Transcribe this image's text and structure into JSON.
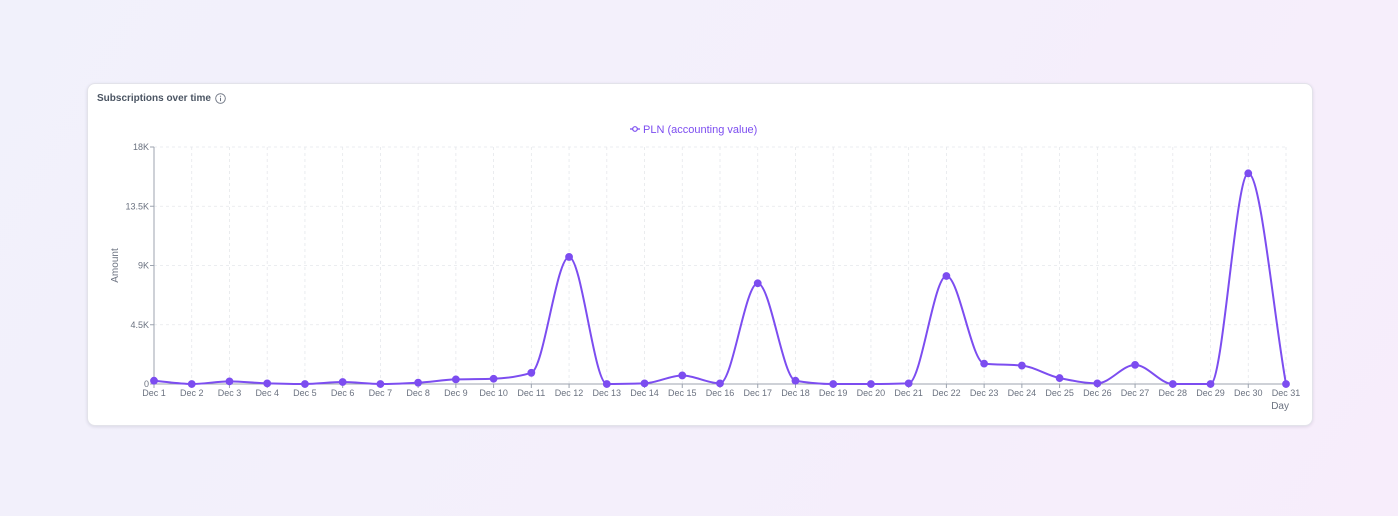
{
  "card": {
    "title": "Subscriptions over time",
    "info_icon": "info-circle-icon"
  },
  "colors": {
    "series": "#7c4df0",
    "grid": "#e5e7eb",
    "axis": "#9ca3af",
    "text": "#6b7280"
  },
  "chart_data": {
    "type": "line",
    "title": "Subscriptions over time",
    "xlabel": "Day",
    "ylabel": "Amount",
    "ylim": [
      0,
      18000
    ],
    "yticks": [
      0,
      4500,
      9000,
      13500,
      18000
    ],
    "ytick_labels": [
      "0",
      "4.5K",
      "9K",
      "13.5K",
      "18K"
    ],
    "categories": [
      "Dec 1",
      "Dec 2",
      "Dec 3",
      "Dec 4",
      "Dec 5",
      "Dec 6",
      "Dec 7",
      "Dec 8",
      "Dec 9",
      "Dec 10",
      "Dec 11",
      "Dec 12",
      "Dec 13",
      "Dec 14",
      "Dec 15",
      "Dec 16",
      "Dec 17",
      "Dec 18",
      "Dec 19",
      "Dec 20",
      "Dec 21",
      "Dec 22",
      "Dec 23",
      "Dec 24",
      "Dec 25",
      "Dec 26",
      "Dec 27",
      "Dec 28",
      "Dec 29",
      "Dec 30",
      "Dec 31"
    ],
    "series": [
      {
        "name": "PLN (accounting value)",
        "values": [
          250,
          0,
          200,
          50,
          0,
          150,
          0,
          100,
          350,
          400,
          850,
          9650,
          0,
          50,
          650,
          50,
          7650,
          250,
          0,
          0,
          50,
          8200,
          1550,
          1400,
          450,
          50,
          1450,
          0,
          0,
          16000,
          0
        ]
      }
    ],
    "grid": true,
    "legend": "top-center",
    "curve": "smooth"
  }
}
